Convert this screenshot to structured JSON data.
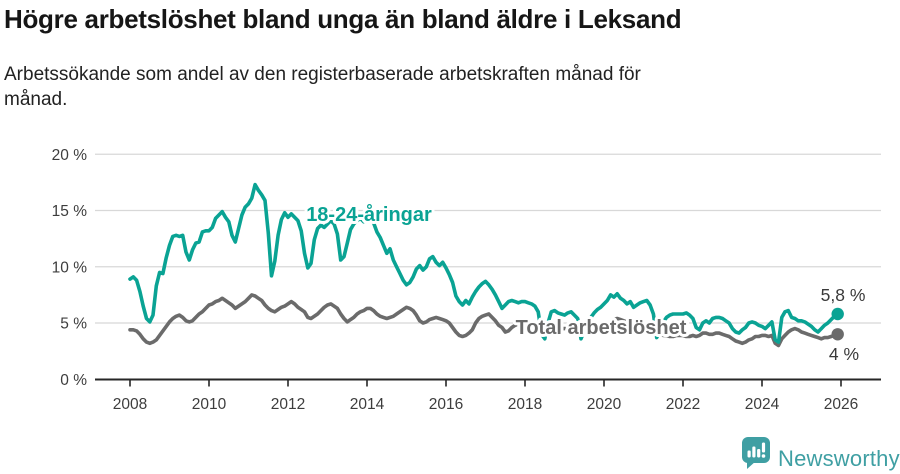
{
  "header": {
    "title": "Högre arbetslöshet bland unga än bland äldre i Leksand",
    "subtitle": "Arbetssökande som andel av den registerbaserade arbetskraften månad för månad."
  },
  "chart_data": {
    "type": "line",
    "frequency": "monthly",
    "x_start_year": 2008,
    "xlim": [
      2008,
      2026.2
    ],
    "ylim": [
      0,
      20
    ],
    "grid": true,
    "y_tick_values": [
      0,
      5,
      10,
      15,
      20
    ],
    "y_tick_labels": [
      "0 %",
      "5 %",
      "10 %",
      "15 %",
      "20 %"
    ],
    "x_tick_years": [
      2008,
      2010,
      2012,
      2014,
      2016,
      2018,
      2020,
      2022,
      2024,
      2026
    ],
    "x_tick_labels": [
      "2008",
      "2010",
      "2012",
      "2014",
      "2016",
      "2018",
      "2020",
      "2022",
      "2024",
      "2026"
    ],
    "series": [
      {
        "name": "Total arbetslöshet",
        "label_text": "Total arbetslöshet",
        "color": "#6b6b6b",
        "end_label": "4 %",
        "end_value": 4.0,
        "values": [
          4.4,
          4.4,
          4.3,
          4.0,
          3.6,
          3.3,
          3.2,
          3.3,
          3.5,
          3.9,
          4.3,
          4.7,
          5.1,
          5.4,
          5.6,
          5.7,
          5.5,
          5.2,
          5.1,
          5.2,
          5.5,
          5.8,
          6.0,
          6.3,
          6.6,
          6.7,
          6.9,
          7.0,
          7.2,
          7.0,
          6.8,
          6.6,
          6.3,
          6.5,
          6.7,
          6.9,
          7.2,
          7.5,
          7.4,
          7.2,
          7.0,
          6.6,
          6.3,
          6.1,
          6.0,
          6.2,
          6.4,
          6.5,
          6.7,
          6.9,
          6.7,
          6.4,
          6.2,
          6.0,
          5.5,
          5.4,
          5.6,
          5.8,
          6.1,
          6.4,
          6.6,
          6.7,
          6.5,
          6.3,
          5.8,
          5.4,
          5.1,
          5.3,
          5.5,
          5.8,
          6.0,
          6.1,
          6.3,
          6.3,
          6.1,
          5.8,
          5.6,
          5.5,
          5.4,
          5.5,
          5.6,
          5.8,
          6.0,
          6.2,
          6.4,
          6.3,
          6.1,
          5.7,
          5.2,
          5.0,
          5.1,
          5.3,
          5.4,
          5.5,
          5.4,
          5.3,
          5.2,
          5.0,
          4.6,
          4.2,
          3.9,
          3.8,
          3.9,
          4.1,
          4.4,
          5.0,
          5.4,
          5.6,
          5.7,
          5.8,
          5.5,
          5.2,
          4.8,
          4.6,
          4.2,
          4.3,
          4.6,
          4.8,
          4.9,
          5.0,
          5.0,
          4.9,
          4.8,
          4.6,
          4.4,
          4.2,
          4.1,
          4.2,
          4.3,
          4.4,
          4.5,
          4.5,
          4.5,
          4.5,
          4.4,
          4.3,
          4.2,
          4.1,
          4.1,
          4.2,
          4.3,
          4.4,
          4.5,
          4.6,
          4.7,
          4.8,
          5.0,
          5.3,
          5.4,
          5.3,
          5.2,
          5.1,
          5.0,
          4.9,
          4.8,
          4.7,
          4.6,
          4.5,
          4.4,
          4.3,
          4.1,
          4.0,
          3.9,
          3.9,
          3.8,
          3.8,
          3.9,
          3.9,
          3.9,
          3.8,
          3.8,
          3.9,
          3.8,
          3.9,
          4.1,
          4.1,
          4.0,
          4.0,
          4.1,
          4.1,
          4.0,
          3.9,
          3.8,
          3.6,
          3.4,
          3.3,
          3.2,
          3.3,
          3.5,
          3.6,
          3.8,
          3.8,
          3.9,
          3.9,
          3.8,
          3.9,
          3.2,
          3.0,
          3.6,
          3.9,
          4.2,
          4.4,
          4.5,
          4.4,
          4.2,
          4.1,
          4.0,
          3.9,
          3.8,
          3.7,
          3.6,
          3.7,
          3.7,
          3.8,
          3.9,
          4.0
        ]
      },
      {
        "name": "18-24-åringar",
        "label_text": "18-24-åringar",
        "color": "#0aa394",
        "end_label": "5,8 %",
        "end_value": 5.8,
        "values": [
          8.9,
          9.1,
          8.8,
          7.8,
          6.5,
          5.4,
          5.1,
          5.7,
          8.3,
          9.5,
          9.4,
          10.8,
          11.9,
          12.7,
          12.8,
          12.7,
          12.8,
          11.3,
          10.6,
          11.5,
          12.1,
          12.2,
          13.1,
          13.2,
          13.2,
          13.5,
          14.3,
          14.6,
          14.9,
          14.4,
          14.0,
          12.8,
          12.2,
          13.4,
          14.6,
          15.3,
          15.6,
          16.1,
          17.3,
          16.8,
          16.4,
          15.9,
          13.0,
          9.2,
          10.5,
          12.8,
          14.2,
          14.8,
          14.4,
          14.7,
          14.4,
          14.1,
          13.2,
          11.2,
          9.9,
          10.3,
          12.4,
          13.4,
          13.7,
          13.5,
          13.8,
          14.1,
          13.8,
          12.9,
          10.6,
          10.9,
          12.1,
          13.3,
          13.8,
          14.1,
          14.3,
          14.0,
          14.2,
          14.3,
          13.9,
          13.1,
          12.6,
          11.9,
          11.2,
          11.6,
          10.6,
          10.0,
          9.4,
          8.8,
          8.4,
          8.6,
          9.1,
          9.8,
          10.1,
          9.7,
          10.0,
          10.7,
          10.9,
          10.4,
          10.1,
          10.4,
          9.9,
          9.3,
          8.6,
          7.4,
          6.9,
          6.6,
          7.0,
          6.7,
          7.3,
          7.8,
          8.2,
          8.5,
          8.7,
          8.4,
          8.0,
          7.5,
          6.9,
          6.3,
          6.6,
          6.9,
          7.0,
          6.9,
          6.8,
          6.9,
          6.9,
          6.8,
          6.7,
          6.5,
          6.0,
          4.0,
          3.6,
          5.0,
          6.0,
          6.1,
          5.9,
          5.8,
          5.7,
          5.9,
          6.0,
          5.7,
          5.4,
          3.6,
          4.3,
          5.0,
          5.5,
          5.9,
          6.2,
          6.4,
          6.7,
          7.0,
          7.5,
          7.3,
          7.6,
          7.2,
          7.0,
          6.7,
          6.9,
          6.4,
          6.6,
          6.8,
          6.9,
          7.0,
          6.6,
          5.8,
          3.7,
          4.3,
          5.1,
          5.5,
          5.7,
          5.8,
          5.8,
          5.8,
          5.8,
          5.9,
          5.7,
          5.4,
          4.6,
          4.4,
          5.0,
          5.2,
          5.0,
          5.4,
          5.5,
          5.5,
          5.4,
          5.2,
          5.0,
          4.5,
          4.2,
          4.1,
          4.4,
          4.6,
          5.0,
          5.1,
          5.0,
          4.8,
          4.7,
          4.5,
          4.8,
          5.1,
          3.5,
          3.3,
          5.5,
          6.0,
          6.1,
          5.5,
          5.4,
          5.2,
          5.2,
          5.1,
          4.9,
          4.7,
          4.4,
          4.2,
          4.5,
          4.8,
          5.0,
          5.3,
          5.6,
          5.8
        ]
      }
    ]
  },
  "annotations": {
    "youth_series_label": "18-24-åringar",
    "total_series_label": "Total arbetslöshet",
    "youth_end_label": "5,8 %",
    "total_end_label": "4 %"
  },
  "branding": {
    "logo_text": "Newsworthy",
    "logo_color": "#3f9fa3"
  },
  "colors": {
    "youth_line": "#0aa394",
    "total_line": "#6b6b6b",
    "gridline": "#d8d8d8",
    "axis": "#262626",
    "tick_text": "#3d3d3d"
  }
}
